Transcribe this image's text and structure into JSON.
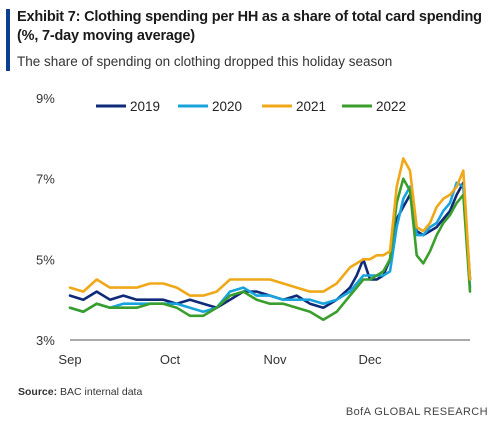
{
  "header": {
    "title": "Exhibit 7: Clothing spending per HH as a share of total card spending (%, 7-day moving average)",
    "subtitle": "The share of spending on clothing dropped this holiday season",
    "accent_color": "#0b3d91"
  },
  "footer": {
    "source_label": "Source:",
    "source_text": "BAC internal data",
    "brand": "BofA GLOBAL RESEARCH"
  },
  "chart_data": {
    "type": "line",
    "title": "Exhibit 7: Clothing spending per HH as a share of total card spending (%, 7-day moving average)",
    "subtitle": "The share of spending on clothing dropped this holiday season",
    "xlabel": "",
    "ylabel": "",
    "x_ticks": [
      "Sep",
      "Oct",
      "Nov",
      "Dec"
    ],
    "y_ticks": [
      "3%",
      "5%",
      "7%",
      "9%"
    ],
    "ylim": [
      3,
      9
    ],
    "xlim": [
      0,
      120
    ],
    "grid": false,
    "legend_position": "top",
    "x": [
      0,
      4,
      8,
      12,
      16,
      20,
      24,
      28,
      32,
      36,
      40,
      44,
      48,
      52,
      56,
      60,
      64,
      68,
      72,
      76,
      80,
      84,
      86,
      88,
      90,
      92,
      94,
      96,
      98,
      100,
      102,
      104,
      106,
      108,
      110,
      112,
      114,
      116,
      118,
      120
    ],
    "series": [
      {
        "name": "2019",
        "color": "#0e2a78",
        "values": [
          4.1,
          4.0,
          4.2,
          4.0,
          4.1,
          4.0,
          4.0,
          4.0,
          3.9,
          4.0,
          3.9,
          3.8,
          4.0,
          4.2,
          4.2,
          4.1,
          4.0,
          4.1,
          3.9,
          3.8,
          4.0,
          4.3,
          4.6,
          5.0,
          4.5,
          4.5,
          4.6,
          5.0,
          6.0,
          6.3,
          6.6,
          5.7,
          5.6,
          5.7,
          5.8,
          6.0,
          6.2,
          6.6,
          6.9,
          4.5
        ]
      },
      {
        "name": "2020",
        "color": "#19a3dc",
        "values": [
          3.8,
          3.7,
          3.9,
          3.8,
          3.9,
          3.9,
          3.9,
          3.9,
          3.9,
          3.8,
          3.7,
          3.8,
          4.2,
          4.3,
          4.1,
          4.1,
          4.0,
          4.0,
          4.0,
          3.9,
          4.0,
          4.2,
          4.4,
          4.6,
          4.6,
          4.6,
          4.6,
          4.7,
          5.8,
          6.5,
          6.8,
          5.6,
          5.6,
          5.8,
          5.9,
          6.2,
          6.4,
          6.9,
          6.8,
          4.3
        ]
      },
      {
        "name": "2021",
        "color": "#f0a818",
        "values": [
          4.3,
          4.2,
          4.5,
          4.3,
          4.3,
          4.3,
          4.4,
          4.4,
          4.3,
          4.1,
          4.1,
          4.2,
          4.5,
          4.5,
          4.5,
          4.5,
          4.4,
          4.3,
          4.2,
          4.2,
          4.4,
          4.8,
          4.9,
          5.0,
          5.0,
          5.1,
          5.1,
          5.2,
          6.8,
          7.5,
          7.2,
          5.8,
          5.7,
          5.9,
          6.3,
          6.5,
          6.6,
          6.8,
          7.2,
          4.5
        ]
      },
      {
        "name": "2022",
        "color": "#3a9e2d",
        "values": [
          3.8,
          3.7,
          3.9,
          3.8,
          3.8,
          3.8,
          3.9,
          3.9,
          3.8,
          3.6,
          3.6,
          3.8,
          4.1,
          4.2,
          4.0,
          3.9,
          3.9,
          3.8,
          3.7,
          3.5,
          3.7,
          4.1,
          4.3,
          4.5,
          4.5,
          4.6,
          4.7,
          5.0,
          6.4,
          7.0,
          6.7,
          5.1,
          4.9,
          5.2,
          5.6,
          5.9,
          6.1,
          6.4,
          6.6,
          4.2
        ]
      }
    ]
  }
}
